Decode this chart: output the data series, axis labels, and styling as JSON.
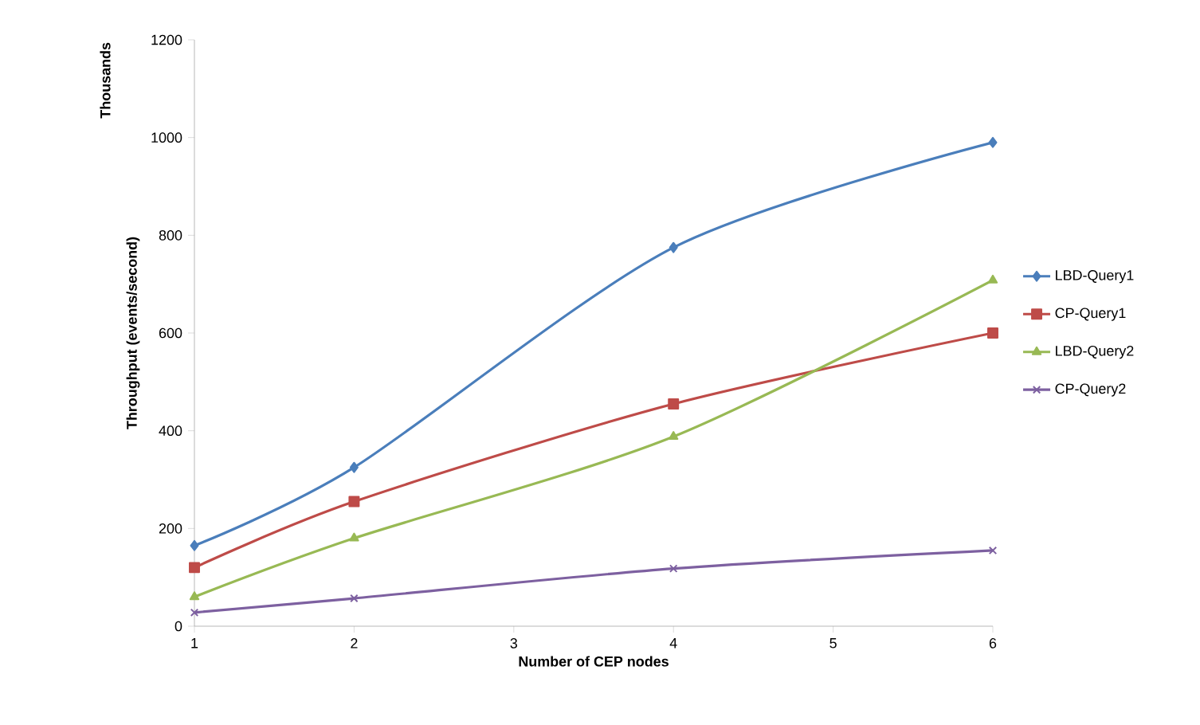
{
  "chart_data": {
    "type": "line",
    "xlabel": "Number of CEP nodes",
    "ylabel": "Throughput (events/second)",
    "annotations": [
      "Thousands"
    ],
    "x": [
      1,
      2,
      4,
      6
    ],
    "xlim": [
      1,
      6
    ],
    "xticks": [
      1,
      2,
      3,
      4,
      5,
      6
    ],
    "ylim": [
      0,
      1200
    ],
    "yticks": [
      0,
      200,
      400,
      600,
      800,
      1000,
      1200
    ],
    "grid": false,
    "legend": "right",
    "line_style": "solid",
    "series": [
      {
        "name": "LBD-Query1",
        "color": "#4a7ebb",
        "marker": "diamond",
        "values": [
          165,
          325,
          775,
          990
        ]
      },
      {
        "name": "CP-Query1",
        "color": "#be4b48",
        "marker": "square",
        "values": [
          120,
          255,
          455,
          600
        ]
      },
      {
        "name": "LBD-Query2",
        "color": "#98b954",
        "marker": "triangle",
        "values": [
          60,
          180,
          388,
          708
        ]
      },
      {
        "name": "CP-Query2",
        "color": "#7d60a0",
        "marker": "cross",
        "values": [
          28,
          57,
          118,
          155
        ]
      }
    ]
  }
}
